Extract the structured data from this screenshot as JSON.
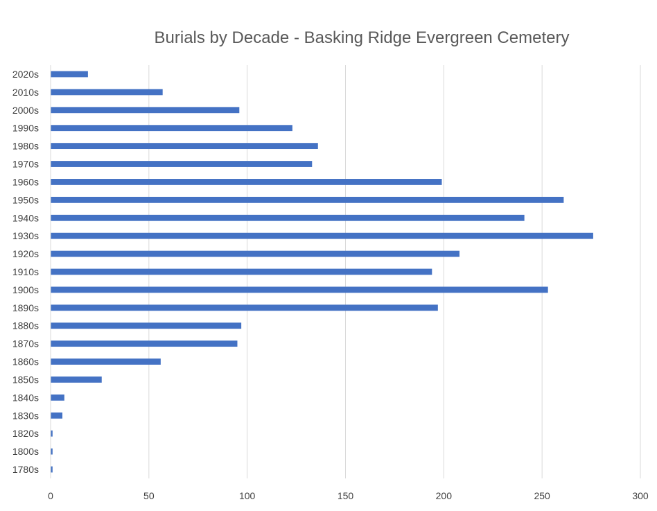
{
  "chart_data": {
    "type": "bar",
    "orientation": "horizontal",
    "title": "Burials by Decade - Basking Ridge Evergreen Cemetery",
    "xlabel": "",
    "ylabel": "",
    "categories": [
      "1780s",
      "1800s",
      "1820s",
      "1830s",
      "1840s",
      "1850s",
      "1860s",
      "1870s",
      "1880s",
      "1890s",
      "1900s",
      "1910s",
      "1920s",
      "1930s",
      "1940s",
      "1950s",
      "1960s",
      "1970s",
      "1980s",
      "1990s",
      "2000s",
      "2010s",
      "2020s"
    ],
    "values": [
      1,
      1,
      1,
      6,
      7,
      26,
      56,
      95,
      97,
      197,
      253,
      194,
      208,
      276,
      241,
      261,
      199,
      133,
      136,
      123,
      96,
      57,
      19
    ],
    "xlim": [
      0,
      300
    ],
    "xticks": [
      "0",
      "50",
      "100",
      "150",
      "200",
      "250",
      "300"
    ],
    "grid": true,
    "legend": "none",
    "bar_color": "#4472C4",
    "grid_color": "#D9D9D9"
  }
}
